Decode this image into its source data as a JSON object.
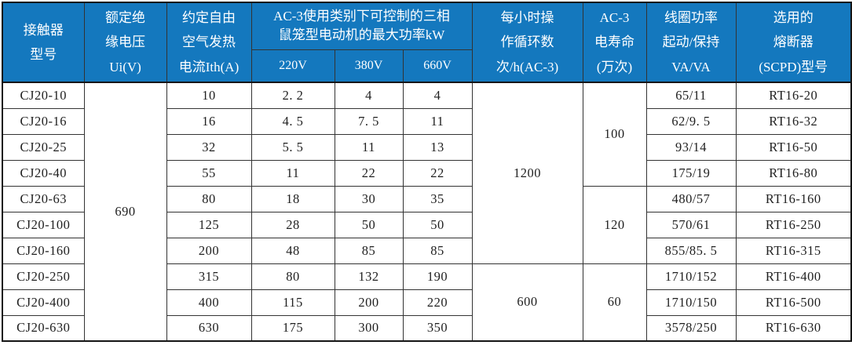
{
  "table": {
    "title_semantic": "CJ20 contactor specification table",
    "headers": {
      "model": "接触器\n型号",
      "ui": "额定绝\n缘电压\nUi(V)",
      "ith": "约定自由\n空气发热\n电流Ith(A)",
      "power_group": "AC-3使用类别下可控制的三相\n鼠笼型电动机的最大功率kW",
      "v220": "220V",
      "v380": "380V",
      "v660": "660V",
      "cycles": "每小时操\n作循环数\n次/h(AC-3)",
      "life": "AC-3\n电寿命\n(万次)",
      "coil": "线圈功率\n起动/保持\nVA/VA",
      "fuse": "选用的\n熔断器\n(SCPD)型号"
    },
    "merged": {
      "ui": [
        {
          "value": "690",
          "start": 0,
          "span": 10
        }
      ],
      "cycles": [
        {
          "value": "1200",
          "start": 0,
          "span": 7
        },
        {
          "value": "600",
          "start": 7,
          "span": 3
        }
      ],
      "life": [
        {
          "value": "100",
          "start": 0,
          "span": 4
        },
        {
          "value": "120",
          "start": 4,
          "span": 3
        },
        {
          "value": "60",
          "start": 7,
          "span": 3
        }
      ]
    },
    "rows": [
      {
        "model": "CJ20-10",
        "ith": "10",
        "p220": "2. 2",
        "p380": "4",
        "p660": "4",
        "coil": "65/11",
        "fuse": "RT16-20"
      },
      {
        "model": "CJ20-16",
        "ith": "16",
        "p220": "4. 5",
        "p380": "7. 5",
        "p660": "11",
        "coil": "62/9. 5",
        "fuse": "RT16-32"
      },
      {
        "model": "CJ20-25",
        "ith": "32",
        "p220": "5. 5",
        "p380": "11",
        "p660": "13",
        "coil": "93/14",
        "fuse": "RT16-50"
      },
      {
        "model": "CJ20-40",
        "ith": "55",
        "p220": "11",
        "p380": "22",
        "p660": "22",
        "coil": "175/19",
        "fuse": "RT16-80"
      },
      {
        "model": "CJ20-63",
        "ith": "80",
        "p220": "18",
        "p380": "30",
        "p660": "35",
        "coil": "480/57",
        "fuse": "RT16-160"
      },
      {
        "model": "CJ20-100",
        "ith": "125",
        "p220": "28",
        "p380": "50",
        "p660": "50",
        "coil": "570/61",
        "fuse": "RT16-250"
      },
      {
        "model": "CJ20-160",
        "ith": "200",
        "p220": "48",
        "p380": "85",
        "p660": "85",
        "coil": "855/85. 5",
        "fuse": "RT16-315"
      },
      {
        "model": "CJ20-250",
        "ith": "315",
        "p220": "80",
        "p380": "132",
        "p660": "190",
        "coil": "1710/152",
        "fuse": "RT16-400"
      },
      {
        "model": "CJ20-400",
        "ith": "400",
        "p220": "115",
        "p380": "200",
        "p660": "220",
        "coil": "1710/150",
        "fuse": "RT16-500"
      },
      {
        "model": "CJ20-630",
        "ith": "630",
        "p220": "175",
        "p380": "300",
        "p660": "350",
        "coil": "3578/250",
        "fuse": "RT16-630"
      }
    ],
    "colors": {
      "header_bg": "#1478BE",
      "header_text": "#FFFFFF",
      "grid_line": "#333333",
      "outer_border": "#151515",
      "body_text": "#1F1F1F",
      "body_bg": "#FFFFFF"
    }
  }
}
